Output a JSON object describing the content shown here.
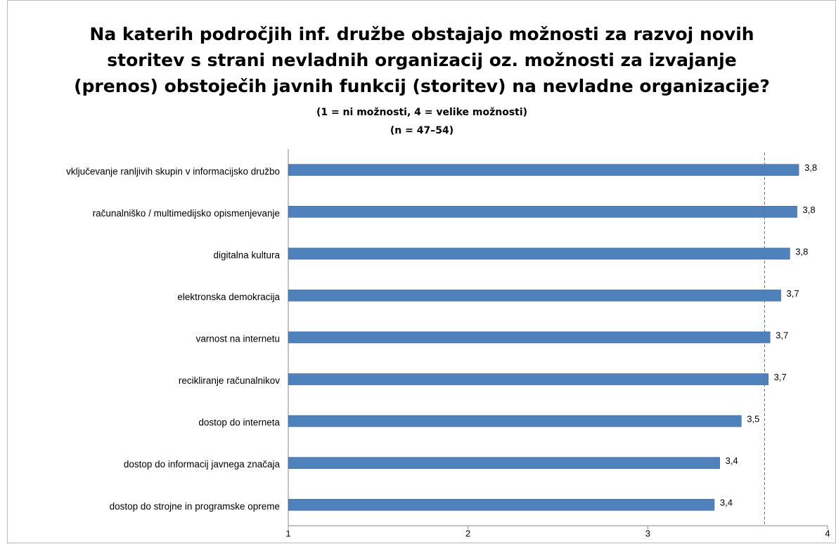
{
  "chart_data": {
    "type": "bar",
    "orientation": "horizontal",
    "title": [
      "Na katerih področjih inf. družbe obstajajo možnosti za razvoj novih",
      "storitev s strani nevladnih organizacij oz. možnosti za izvajanje",
      "(prenos) obstoječih javnih funkcij (storitev) na nevladne organizacije?"
    ],
    "subtitle": [
      "(1 = ni možnosti, 4 = velike možnosti)",
      "(n = 47–54)"
    ],
    "categories": [
      "vključevanje ranljivih skupin v informacijsko družbo",
      "računalniško / multimedijsko opismenjevanje",
      "digitalna kultura",
      "elektronska demokracija",
      "varnost na internetu",
      "recikliranje računalnikov",
      "dostop do interneta",
      "dostop do informacij javnega značaja",
      "dostop do strojne in programske opreme"
    ],
    "values": [
      3.84,
      3.83,
      3.79,
      3.74,
      3.68,
      3.67,
      3.52,
      3.4,
      3.37
    ],
    "value_labels": [
      "3,8",
      "3,8",
      "3,8",
      "3,7",
      "3,7",
      "3,7",
      "3,5",
      "3,4",
      "3,4"
    ],
    "color": "#4f81bd",
    "xlim": [
      1,
      4
    ],
    "xticks": [
      1,
      2,
      3,
      4
    ],
    "reference_line": {
      "value": 3.65,
      "color": "#c0504d"
    }
  }
}
